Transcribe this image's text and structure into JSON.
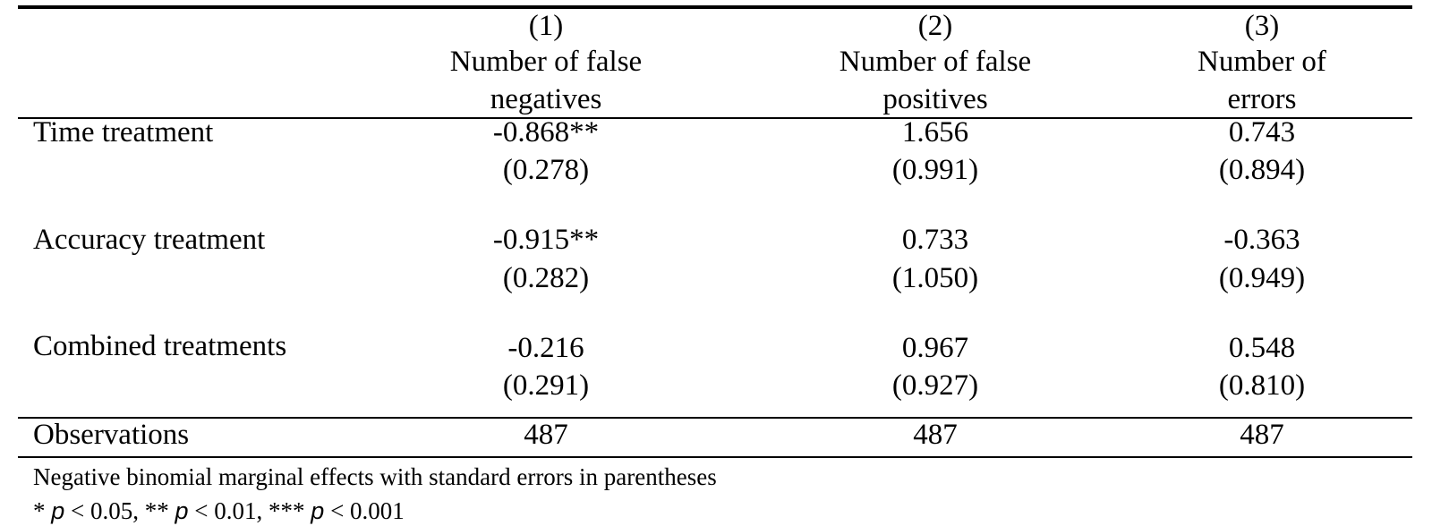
{
  "columns": [
    {
      "number": "(1)",
      "title_line1": "Number of false",
      "title_line2": "negatives"
    },
    {
      "number": "(2)",
      "title_line1": "Number of false",
      "title_line2": "positives"
    },
    {
      "number": "(3)",
      "title_line1": "Number of",
      "title_line2": "errors"
    }
  ],
  "rows": [
    {
      "label": "Time treatment",
      "coefficients": [
        "-0.868**",
        "1.656",
        "0.743"
      ],
      "standard_errors": [
        "(0.278)",
        "(0.991)",
        "(0.894)"
      ]
    },
    {
      "label": "Accuracy treatment",
      "coefficients": [
        "-0.915**",
        "0.733",
        "-0.363"
      ],
      "standard_errors": [
        "(0.282)",
        "(1.050)",
        "(0.949)"
      ]
    },
    {
      "label": "Combined treatments",
      "coefficients": [
        "-0.216",
        "0.967",
        "0.548"
      ],
      "standard_errors": [
        "(0.291)",
        "(0.927)",
        "(0.810)"
      ]
    }
  ],
  "observations": {
    "label": "Observations",
    "values": [
      "487",
      "487",
      "487"
    ]
  },
  "notes": {
    "line1": "Negative binomial marginal effects with standard errors in parentheses",
    "significance": [
      {
        "stars": "* ",
        "var": "p",
        "rest": " < 0.05, "
      },
      {
        "stars": "** ",
        "var": "p",
        "rest": " < 0.01, "
      },
      {
        "stars": "*** ",
        "var": "p",
        "rest": " < 0.001"
      }
    ]
  }
}
